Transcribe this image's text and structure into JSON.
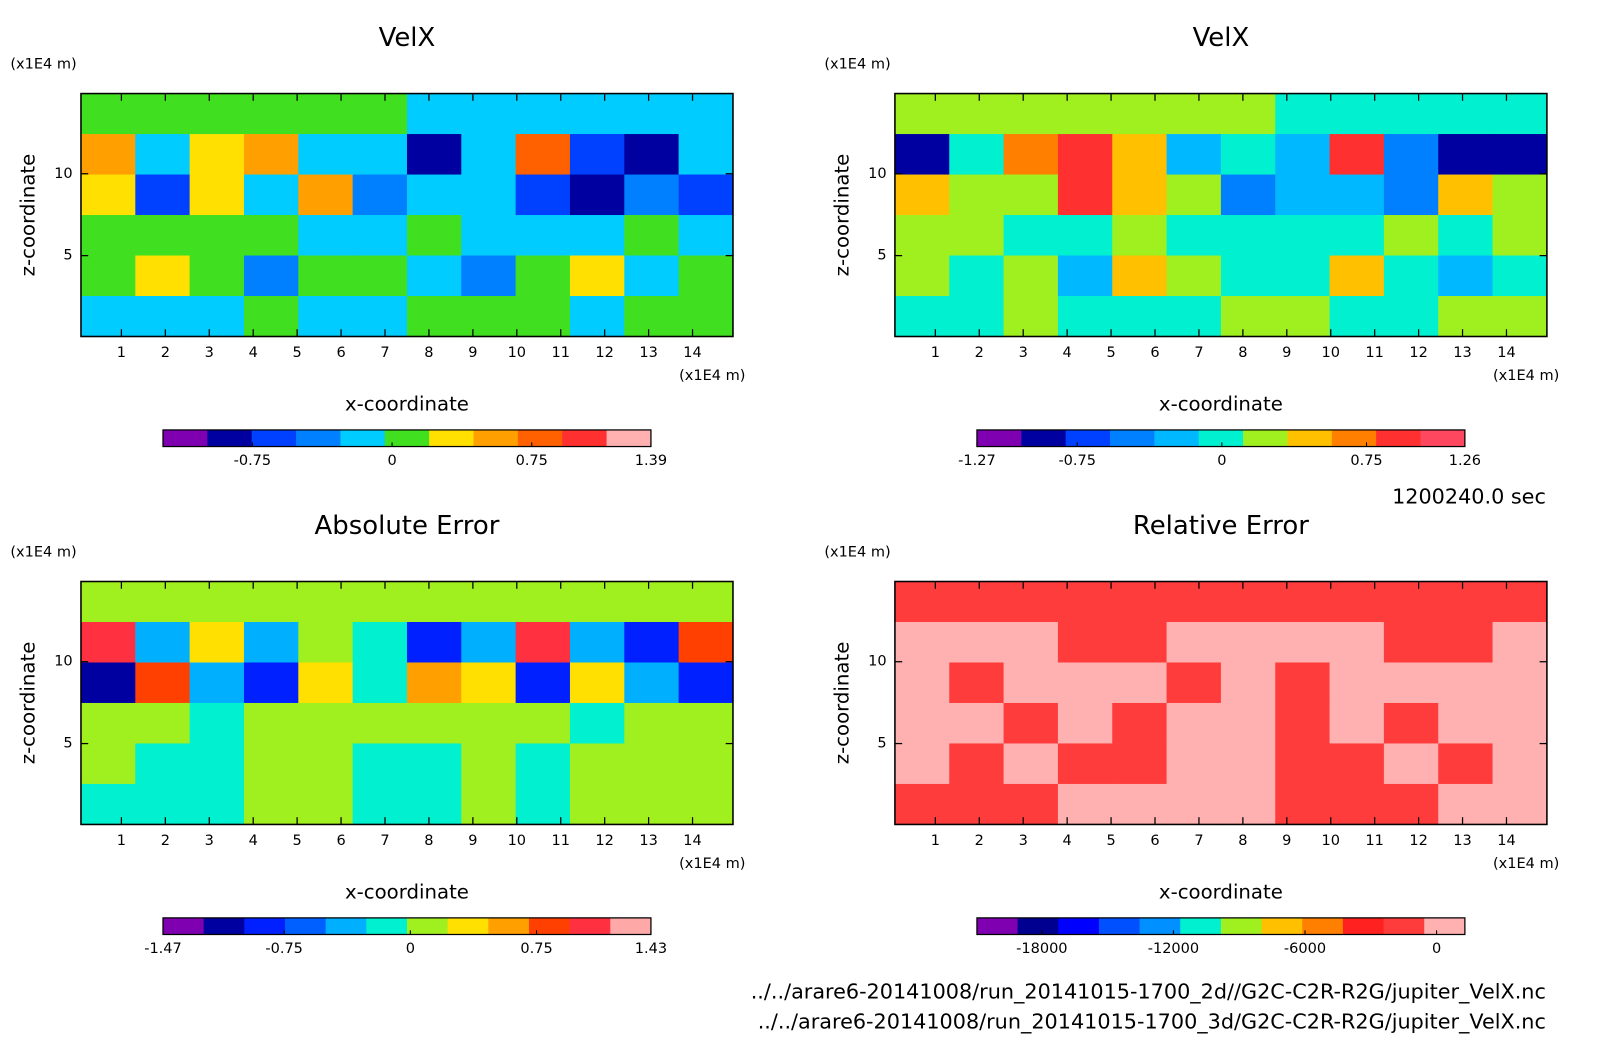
{
  "time_label": "1200240.0 sec",
  "files": [
    "../../arare6-20141008/run_20141015-1700_2d//G2C-C2R-R2G/jupiter_VelX.nc",
    "../../arare6-20141008/run_20141015-1700_3d/G2C-C2R-R2G/jupiter_VelX.nc"
  ],
  "chart_data": [
    {
      "type": "heatmap",
      "title": "VelX",
      "xlabel": "x-coordinate",
      "ylabel": "z-coordinate",
      "x_unit": "(x1E4 m)",
      "y_unit": "(x1E4 m)",
      "xlim": [
        0.08,
        14.92
      ],
      "ylim": [
        0.06,
        14.9
      ],
      "xticks": [
        1,
        2,
        3,
        4,
        5,
        6,
        7,
        8,
        9,
        10,
        11,
        12,
        13,
        14
      ],
      "yticks": [
        5,
        10
      ],
      "z": [
        [
          0.1,
          0.1,
          0.1,
          0.1,
          0.1,
          0.1,
          -0.15,
          -0.15,
          -0.15,
          -0.15,
          -0.15,
          -0.15
        ],
        [
          0.55,
          -0.15,
          0.3,
          0.55,
          -0.15,
          -0.15,
          -0.85,
          -0.15,
          0.75,
          -0.6,
          -0.85,
          -0.15
        ],
        [
          0.3,
          -0.6,
          0.3,
          -0.15,
          0.55,
          -0.4,
          -0.15,
          -0.15,
          -0.6,
          -0.85,
          -0.4,
          -0.6
        ],
        [
          0.1,
          0.1,
          0.1,
          0.1,
          -0.15,
          -0.15,
          0.1,
          -0.15,
          -0.15,
          -0.15,
          0.1,
          -0.15
        ],
        [
          0.1,
          0.3,
          0.1,
          -0.4,
          0.1,
          0.1,
          -0.15,
          -0.4,
          0.1,
          0.3,
          -0.15,
          0.1
        ],
        [
          -0.15,
          -0.15,
          -0.15,
          0.1,
          -0.15,
          -0.15,
          0.1,
          0.1,
          0.1,
          -0.15,
          0.1,
          0.1
        ]
      ],
      "colorbar": {
        "lim": [
          -1.23,
          1.39
        ],
        "ticks": [
          -0.75,
          0,
          0.75,
          1.39
        ],
        "colors": [
          "#7f00b0",
          "#0000a0",
          "#0040ff",
          "#0080ff",
          "#00ccff",
          "#40e020",
          "#ffe000",
          "#ffa000",
          "#ff6000",
          "#ff3030",
          "#ffb0b0"
        ]
      }
    },
    {
      "type": "heatmap",
      "title": "VelX",
      "xlabel": "x-coordinate",
      "ylabel": "z-coordinate",
      "x_unit": "(x1E4 m)",
      "y_unit": "(x1E4 m)",
      "xlim": [
        0.08,
        14.92
      ],
      "ylim": [
        0.06,
        14.9
      ],
      "xticks": [
        1,
        2,
        3,
        4,
        5,
        6,
        7,
        8,
        9,
        10,
        11,
        12,
        13,
        14
      ],
      "yticks": [
        5,
        10
      ],
      "z": [
        [
          0.2,
          0.2,
          0.2,
          0.2,
          0.2,
          0.2,
          0.2,
          0.0,
          0.0,
          0.0,
          0.0,
          0.0
        ],
        [
          -0.9,
          0.0,
          0.7,
          0.9,
          0.45,
          -0.2,
          0.0,
          -0.2,
          0.9,
          -0.45,
          -0.9,
          -0.9
        ],
        [
          0.45,
          0.2,
          0.2,
          0.9,
          0.45,
          0.2,
          -0.45,
          -0.2,
          -0.2,
          -0.45,
          0.45,
          0.2
        ],
        [
          0.2,
          0.2,
          0.0,
          0.0,
          0.2,
          0.0,
          0.0,
          0.0,
          0.0,
          0.2,
          0.0,
          0.2
        ],
        [
          0.2,
          0.0,
          0.2,
          -0.2,
          0.45,
          0.2,
          0.0,
          0.0,
          0.45,
          0.0,
          -0.2,
          0.0
        ],
        [
          0.0,
          0.0,
          0.2,
          0.0,
          0.0,
          0.0,
          0.2,
          0.2,
          0.0,
          0.0,
          0.2,
          0.2
        ]
      ],
      "colorbar": {
        "lim": [
          -1.27,
          1.26
        ],
        "ticks": [
          -1.27,
          -0.75,
          0,
          0.75,
          1.26
        ],
        "colors": [
          "#7f00b0",
          "#0000a0",
          "#0040ff",
          "#0080ff",
          "#00b8ff",
          "#00f0d0",
          "#a0f020",
          "#ffc000",
          "#ff8000",
          "#ff3030",
          "#ff4860"
        ]
      }
    },
    {
      "type": "heatmap",
      "title": "Absolute Error",
      "xlabel": "x-coordinate",
      "ylabel": "z-coordinate",
      "x_unit": "(x1E4 m)",
      "y_unit": "(x1E4 m)",
      "xlim": [
        0.08,
        14.92
      ],
      "ylim": [
        0.06,
        14.9
      ],
      "xticks": [
        1,
        2,
        3,
        4,
        5,
        6,
        7,
        8,
        9,
        10,
        11,
        12,
        13,
        14
      ],
      "yticks": [
        5,
        10
      ],
      "z": [
        [
          0.1,
          0.1,
          0.1,
          0.1,
          0.1,
          0.1,
          0.1,
          0.1,
          0.1,
          0.1,
          0.1,
          0.1
        ],
        [
          1.0,
          -0.4,
          0.35,
          -0.4,
          0.1,
          -0.1,
          -0.9,
          -0.4,
          1.1,
          -0.4,
          -0.9,
          0.8
        ],
        [
          -1.0,
          0.8,
          -0.4,
          -0.9,
          0.35,
          -0.1,
          0.6,
          0.35,
          -0.9,
          0.35,
          -0.4,
          -0.9
        ],
        [
          0.1,
          0.1,
          -0.1,
          0.1,
          0.1,
          0.1,
          0.1,
          0.1,
          0.1,
          -0.1,
          0.1,
          0.1
        ],
        [
          0.1,
          -0.1,
          -0.1,
          0.1,
          0.1,
          -0.1,
          -0.1,
          0.1,
          -0.1,
          0.1,
          0.1,
          0.1
        ],
        [
          -0.1,
          -0.1,
          -0.1,
          0.1,
          0.1,
          -0.1,
          -0.1,
          0.1,
          -0.1,
          0.1,
          0.1,
          0.1
        ]
      ],
      "colorbar": {
        "lim": [
          -1.47,
          1.43
        ],
        "ticks": [
          -1.47,
          -0.75,
          0,
          0.75,
          1.43
        ],
        "colors": [
          "#7f00b0",
          "#0000a0",
          "#0020ff",
          "#0060ff",
          "#00b0ff",
          "#00f0d0",
          "#a0f020",
          "#ffe000",
          "#ffa000",
          "#ff4000",
          "#ff3040",
          "#ffa8a8"
        ]
      }
    },
    {
      "type": "heatmap",
      "title": "Relative Error",
      "xlabel": "x-coordinate",
      "ylabel": "z-coordinate",
      "x_unit": "(x1E4 m)",
      "y_unit": "(x1E4 m)",
      "xlim": [
        0.08,
        14.92
      ],
      "ylim": [
        0.06,
        14.9
      ],
      "xticks": [
        1,
        2,
        3,
        4,
        5,
        6,
        7,
        8,
        9,
        10,
        11,
        12,
        13,
        14
      ],
      "yticks": [
        5,
        10
      ],
      "z": [
        [
          -1500,
          -1500,
          -1500,
          -1500,
          -1500,
          -1500,
          -1500,
          -1500,
          -1500,
          -1500,
          -1500,
          -1500
        ],
        [
          500,
          500,
          500,
          -1500,
          -1500,
          500,
          500,
          500,
          500,
          -1500,
          -1500,
          500
        ],
        [
          500,
          -1500,
          500,
          500,
          500,
          -1500,
          500,
          -1500,
          500,
          500,
          500,
          500
        ],
        [
          500,
          500,
          -1500,
          500,
          -1500,
          500,
          500,
          -1500,
          500,
          -1500,
          500,
          500
        ],
        [
          500,
          -1500,
          500,
          -1500,
          -1500,
          500,
          500,
          -1500,
          -1500,
          500,
          -1500,
          500
        ],
        [
          -1500,
          -1500,
          -1500,
          500,
          500,
          500,
          500,
          -1500,
          -1500,
          -1500,
          500,
          500
        ]
      ],
      "colorbar": {
        "lim": [
          -20960,
          1290
        ],
        "ticks": [
          -18000,
          -12000,
          -6000,
          0
        ],
        "colors": [
          "#7f00b0",
          "#000090",
          "#0000ff",
          "#0050ff",
          "#0090ff",
          "#00f0d0",
          "#a0f020",
          "#ffc000",
          "#ff8000",
          "#ff2020",
          "#ff3c3c",
          "#ffb0b0"
        ]
      }
    }
  ]
}
